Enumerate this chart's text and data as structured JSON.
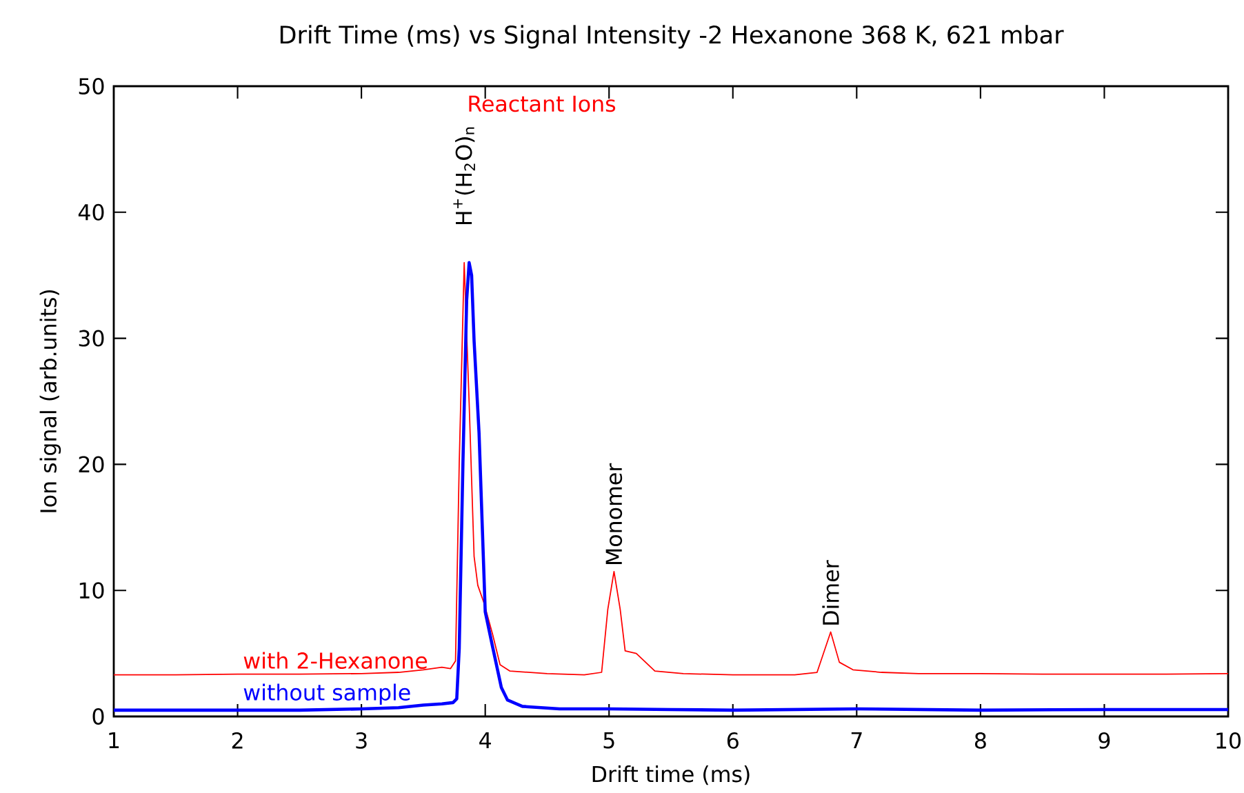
{
  "chart_data": {
    "type": "line",
    "title": "Drift Time (ms) vs Signal Intensity -2 Hexanone 368 K, 621 mbar",
    "xlabel": "Drift time (ms)",
    "ylabel": "Ion signal (arb.units)",
    "xlim": [
      1,
      10
    ],
    "ylim": [
      0,
      50
    ],
    "xticks": [
      1,
      2,
      3,
      4,
      5,
      6,
      7,
      8,
      9,
      10
    ],
    "yticks": [
      0,
      10,
      20,
      30,
      40,
      50
    ],
    "grid": false,
    "legend": false,
    "marker": "none",
    "line_style": "solid",
    "annotations": [
      "Reactant Ions",
      "H$^{+}$(H$_{2}$O)$_{n}$",
      "Monomer",
      "Dimer"
    ],
    "series": [
      {
        "name": "with 2-Hexanone",
        "color": "#ff0000",
        "x": [
          1.0,
          1.5,
          2.0,
          2.5,
          3.0,
          3.3,
          3.5,
          3.65,
          3.72,
          3.76,
          3.79,
          3.83,
          3.87,
          3.91,
          3.94,
          3.99,
          4.06,
          4.12,
          4.2,
          4.5,
          4.8,
          4.94,
          4.99,
          5.04,
          5.09,
          5.13,
          5.22,
          5.37,
          5.6,
          6.0,
          6.5,
          6.68,
          6.79,
          6.86,
          6.97,
          7.2,
          7.5,
          8.0,
          8.5,
          9.0,
          9.5,
          10.0
        ],
        "values": [
          3.3,
          3.3,
          3.35,
          3.35,
          3.4,
          3.5,
          3.7,
          3.9,
          3.8,
          4.4,
          20.1,
          36.0,
          24.9,
          12.7,
          10.4,
          9.0,
          6.5,
          4.1,
          3.6,
          3.4,
          3.3,
          3.5,
          8.5,
          11.5,
          8.5,
          5.2,
          5.0,
          3.6,
          3.4,
          3.3,
          3.3,
          3.5,
          6.7,
          4.3,
          3.7,
          3.5,
          3.4,
          3.4,
          3.35,
          3.35,
          3.35,
          3.4
        ]
      },
      {
        "name": "without sample",
        "color": "#0000ff",
        "x": [
          1.0,
          1.5,
          2.0,
          2.5,
          3.0,
          3.3,
          3.5,
          3.65,
          3.74,
          3.77,
          3.79,
          3.82,
          3.85,
          3.87,
          3.89,
          3.91,
          3.95,
          4.0,
          4.06,
          4.13,
          4.18,
          4.3,
          4.6,
          5.0,
          5.5,
          6.0,
          7.0,
          8.0,
          9.0,
          10.0
        ],
        "values": [
          0.5,
          0.5,
          0.5,
          0.5,
          0.6,
          0.7,
          0.9,
          1.0,
          1.1,
          1.4,
          5.4,
          20.1,
          33.0,
          36.0,
          35.0,
          29.8,
          22.5,
          8.3,
          5.5,
          2.3,
          1.3,
          0.8,
          0.6,
          0.6,
          0.55,
          0.5,
          0.6,
          0.5,
          0.55,
          0.55
        ]
      }
    ]
  }
}
